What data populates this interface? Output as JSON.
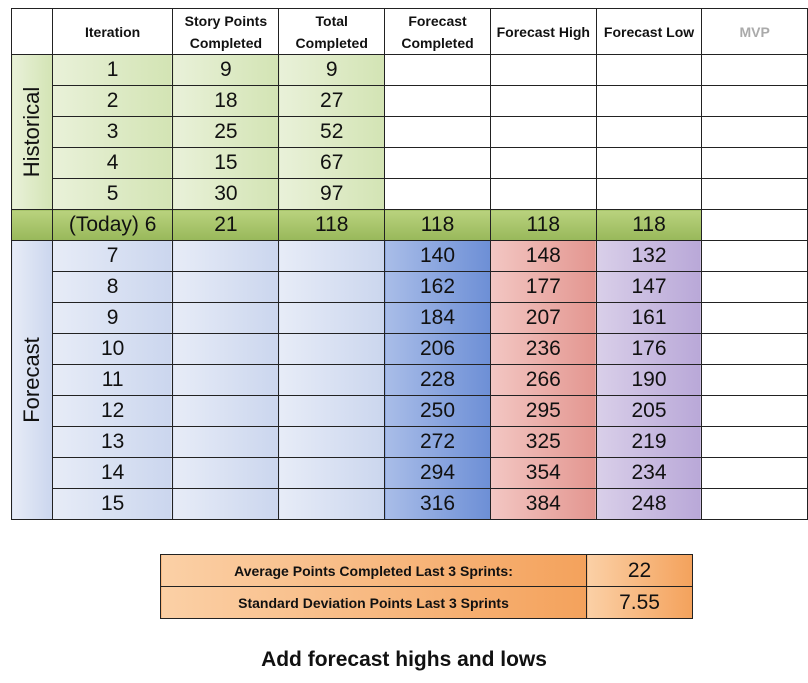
{
  "headers": {
    "iteration": "Iteration",
    "story_points": [
      "Story Points",
      "Completed"
    ],
    "total": [
      "Total",
      "Completed"
    ],
    "forecast": [
      "Forecast",
      "Completed"
    ],
    "high": "Forecast High",
    "low": "Forecast Low",
    "mvp": "MVP"
  },
  "sections": {
    "historical": "Historical",
    "forecast": "Forecast"
  },
  "historical_rows": [
    {
      "iteration": "1",
      "points": "9",
      "total": "9"
    },
    {
      "iteration": "2",
      "points": "18",
      "total": "27"
    },
    {
      "iteration": "3",
      "points": "25",
      "total": "52"
    },
    {
      "iteration": "4",
      "points": "15",
      "total": "67"
    },
    {
      "iteration": "5",
      "points": "30",
      "total": "97"
    }
  ],
  "today_row": {
    "iteration": "(Today) 6",
    "points": "21",
    "total": "118",
    "forecast": "118",
    "high": "118",
    "low": "118"
  },
  "forecast_rows": [
    {
      "iteration": "7",
      "forecast": "140",
      "high": "148",
      "low": "132"
    },
    {
      "iteration": "8",
      "forecast": "162",
      "high": "177",
      "low": "147"
    },
    {
      "iteration": "9",
      "forecast": "184",
      "high": "207",
      "low": "161"
    },
    {
      "iteration": "10",
      "forecast": "206",
      "high": "236",
      "low": "176"
    },
    {
      "iteration": "11",
      "forecast": "228",
      "high": "266",
      "low": "190"
    },
    {
      "iteration": "12",
      "forecast": "250",
      "high": "295",
      "low": "205"
    },
    {
      "iteration": "13",
      "forecast": "272",
      "high": "325",
      "low": "219"
    },
    {
      "iteration": "14",
      "forecast": "294",
      "high": "354",
      "low": "234"
    },
    {
      "iteration": "15",
      "forecast": "316",
      "high": "384",
      "low": "248"
    }
  ],
  "stats": [
    {
      "label": "Average Points Completed Last 3 Sprints:",
      "value": "22"
    },
    {
      "label": "Standard Deviation Points  Last 3 Sprints",
      "value": "7.55"
    }
  ],
  "caption": "Add forecast highs and lows"
}
